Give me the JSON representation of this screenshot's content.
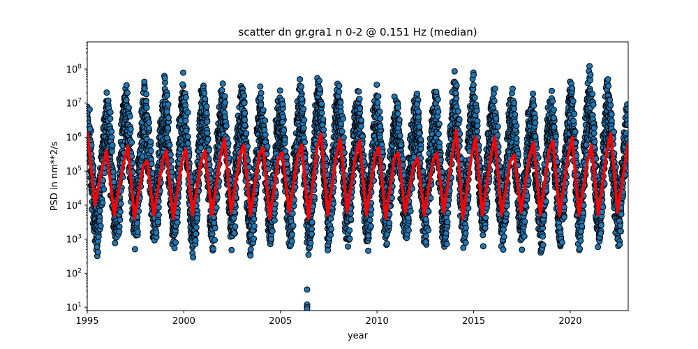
{
  "chart_data": {
    "type": "scatter",
    "title": "scatter dn gr.gra1 n 0-2 @ 0.151 Hz (median)",
    "xlabel": "year",
    "ylabel": "PSD in nm**2/s",
    "xlim": [
      1995,
      2023
    ],
    "ylim_log10": [
      0.9,
      8.8
    ],
    "yscale": "log",
    "x_ticks": [
      1995,
      2000,
      2005,
      2010,
      2015,
      2020
    ],
    "y_ticks": [
      {
        "exp": 1,
        "label": "10",
        "sup": "1"
      },
      {
        "exp": 2,
        "label": "10",
        "sup": "2"
      },
      {
        "exp": 3,
        "label": "10",
        "sup": "3"
      },
      {
        "exp": 4,
        "label": "10",
        "sup": "4"
      },
      {
        "exp": 5,
        "label": "10",
        "sup": "5"
      },
      {
        "exp": 6,
        "label": "10",
        "sup": "6"
      },
      {
        "exp": 7,
        "label": "10",
        "sup": "7"
      },
      {
        "exp": 8,
        "label": "10",
        "sup": "8"
      }
    ],
    "series": [
      {
        "kind": "scatter",
        "color": "#1f77b4",
        "edgecolor": "#000000",
        "envelope_per_year": {
          "year_start": 1995,
          "winter_high_log10": [
            6.5,
            6.9,
            7.0,
            6.7,
            7.2,
            6.9,
            7.1,
            7.0,
            6.9,
            6.8,
            6.7,
            7.2,
            7.1,
            6.9,
            6.8,
            6.6,
            6.6,
            6.7,
            6.9,
            7.3,
            6.9,
            6.8,
            6.7,
            6.7,
            6.8,
            7.1,
            7.3,
            6.6
          ],
          "summer_low_log10": [
            2.8,
            2.9,
            3.1,
            3.0,
            2.9,
            2.8,
            3.0,
            3.0,
            2.9,
            3.0,
            3.0,
            2.9,
            3.0,
            3.0,
            3.0,
            3.1,
            3.1,
            3.1,
            3.0,
            3.0,
            3.1,
            3.0,
            3.0,
            2.9,
            2.9,
            3.0,
            3.0,
            3.0
          ]
        },
        "outliers": [
          {
            "x": 2006.38,
            "y": 33
          },
          {
            "x": 2006.38,
            "y": 12
          },
          {
            "x": 2006.38,
            "y": 10
          },
          {
            "x": 2006.38,
            "y": 9
          }
        ]
      },
      {
        "kind": "line",
        "name": "median",
        "color": "#ff0000",
        "x": [
          1995.0,
          1995.4,
          1995.8,
          1996.0,
          1996.4,
          1996.9,
          1997.1,
          1997.45,
          1997.9,
          1998.1,
          1998.45,
          1998.9,
          1999.1,
          1999.45,
          1999.9,
          2000.1,
          2000.45,
          2000.9,
          2001.1,
          2001.45,
          2001.9,
          2002.1,
          2002.45,
          2002.9,
          2003.1,
          2003.45,
          2003.9,
          2004.1,
          2004.45,
          2004.9,
          2005.1,
          2005.45,
          2005.9,
          2006.1,
          2006.45,
          2006.9,
          2007.1,
          2007.45,
          2007.9,
          2008.1,
          2008.45,
          2008.9,
          2009.1,
          2009.45,
          2009.9,
          2010.1,
          2010.45,
          2010.9,
          2011.1,
          2011.45,
          2011.9,
          2012.1,
          2012.45,
          2012.9,
          2013.1,
          2013.45,
          2013.9,
          2014.1,
          2014.45,
          2014.9,
          2015.1,
          2015.45,
          2015.9,
          2016.1,
          2016.45,
          2016.9,
          2017.1,
          2017.45,
          2017.9,
          2018.1,
          2018.45,
          2018.9,
          2019.1,
          2019.45,
          2019.9,
          2020.1,
          2020.45,
          2020.9,
          2021.1,
          2021.45,
          2021.9,
          2022.1,
          2022.45,
          2022.9,
          2023.0
        ],
        "y": [
          1500000,
          10000,
          150000,
          400000,
          5000,
          200000,
          550000,
          4000,
          150000,
          200000,
          5000,
          200000,
          400000,
          4000,
          200000,
          450000,
          5000,
          200000,
          400000,
          5000,
          300000,
          900000,
          6000,
          300000,
          600000,
          5000,
          300000,
          500000,
          4000,
          250000,
          350000,
          6000,
          300000,
          600000,
          4000,
          500000,
          1300000,
          5000,
          300000,
          900000,
          6000,
          300000,
          800000,
          5000,
          300000,
          500000,
          4000,
          250000,
          350000,
          6000,
          150000,
          250000,
          5000,
          200000,
          350000,
          6000,
          300000,
          1600000,
          4000,
          300000,
          1000000,
          5000,
          300000,
          1000000,
          5000,
          200000,
          300000,
          6000,
          300000,
          700000,
          5000,
          400000,
          800000,
          5000,
          300000,
          1000000,
          5000,
          200000,
          600000,
          5000,
          400000,
          1300000,
          6000,
          300000,
          700000
        ]
      }
    ]
  }
}
